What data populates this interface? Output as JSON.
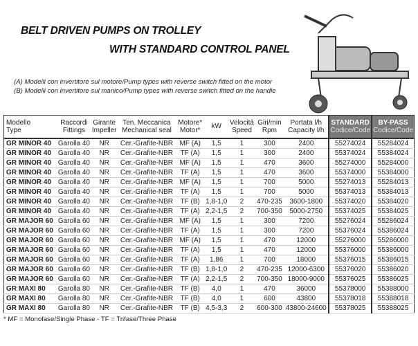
{
  "title_line1": "BELT DRIVEN PUMPS ON TROLLEY",
  "title_line2": "WITH STANDARD CONTROL PANEL",
  "notes": [
    "(A) Modelli con invertitore sul motore/Pump types with reverse switch fitted on the motor",
    "(B) Modelli con invertitore sul manico/Pump types with reverse switch fitted on the handle"
  ],
  "headers": [
    {
      "l1": "Modello",
      "l2": "Type"
    },
    {
      "l1": "Raccordi",
      "l2": "Fittings"
    },
    {
      "l1": "Girante",
      "l2": "Impeller"
    },
    {
      "l1": "Ten. Meccanica",
      "l2": "Mechanical seal"
    },
    {
      "l1": "Motore*",
      "l2": "Motor*"
    },
    {
      "l1": "kW",
      "l2": ""
    },
    {
      "l1": "Velocità",
      "l2": "Speed"
    },
    {
      "l1": "Giri/min",
      "l2": "Rpm"
    },
    {
      "l1": "Portata l/h",
      "l2": "Capacity l/h"
    },
    {
      "l1": "STANDARD",
      "l2": "Codice/Code"
    },
    {
      "l1": "BY-PASS",
      "l2": "Codice/Code"
    }
  ],
  "rows": [
    [
      "GR MINOR 40",
      "Garolla 40",
      "NR",
      "Cer.-Grafite-NBR",
      "MF (A)",
      "1,5",
      "1",
      "300",
      "2400",
      "55274024",
      "55284024"
    ],
    [
      "GR MINOR 40",
      "Garolla 40",
      "NR",
      "Cer.-Grafite-NBR",
      "TF (A)",
      "1,5",
      "1",
      "300",
      "2400",
      "55374024",
      "55384024"
    ],
    [
      "GR MINOR 40",
      "Garolla 40",
      "NR",
      "Cer.-Grafite-NBR",
      "MF (A)",
      "1,5",
      "1",
      "470",
      "3600",
      "55274000",
      "55284000"
    ],
    [
      "GR MINOR 40",
      "Garolla 40",
      "NR",
      "Cer.-Grafite-NBR",
      "TF (A)",
      "1,5",
      "1",
      "470",
      "3600",
      "55374000",
      "55384000"
    ],
    [
      "GR MINOR 40",
      "Garolla 40",
      "NR",
      "Cer.-Grafite-NBR",
      "MF (A)",
      "1,5",
      "1",
      "700",
      "5000",
      "55274013",
      "55284013"
    ],
    [
      "GR MINOR 40",
      "Garolla 40",
      "NR",
      "Cer.-Grafite-NBR",
      "TF (A)",
      "1,5",
      "1",
      "700",
      "5000",
      "55374013",
      "55384013"
    ],
    [
      "GR MINOR 40",
      "Garolla 40",
      "NR",
      "Cer.-Grafite-NBR",
      "TF (B)",
      "1,8-1,0",
      "2",
      "470-235",
      "3600-1800",
      "55374020",
      "55384020"
    ],
    [
      "GR MINOR 40",
      "Garolla 40",
      "NR",
      "Cer.-Grafite-NBR",
      "TF (A)",
      "2,2-1,5",
      "2",
      "700-350",
      "5000-2750",
      "55374025",
      "55384025"
    ],
    [
      "GR MAJOR 60",
      "Garolla 60",
      "NR",
      "Cer.-Grafite-NBR",
      "MF (A)",
      "1,5",
      "1",
      "300",
      "7200",
      "55276024",
      "55286024"
    ],
    [
      "GR MAJOR 60",
      "Garolla 60",
      "NR",
      "Cer.-Grafite-NBR",
      "TF (A)",
      "1,5",
      "1",
      "300",
      "7200",
      "55376024",
      "55386024"
    ],
    [
      "GR MAJOR 60",
      "Garolla 60",
      "NR",
      "Cer.-Grafite-NBR",
      "MF (A)",
      "1,5",
      "1",
      "470",
      "12000",
      "55276000",
      "55286000"
    ],
    [
      "GR MAJOR 60",
      "Garolla 60",
      "NR",
      "Cer.-Grafite-NBR",
      "TF (A)",
      "1,5",
      "1",
      "470",
      "12000",
      "55376000",
      "55386000"
    ],
    [
      "GR MAJOR 60",
      "Garolla 60",
      "NR",
      "Cer.-Grafite-NBR",
      "TF (A)",
      "1,86",
      "1",
      "700",
      "18000",
      "55376015",
      "55386015"
    ],
    [
      "GR MAJOR 60",
      "Garolla 60",
      "NR",
      "Cer.-Grafite-NBR",
      "TF (B)",
      "1,8-1,0",
      "2",
      "470-235",
      "12000-6300",
      "55376020",
      "55386020"
    ],
    [
      "GR MAJOR 60",
      "Garolla 60",
      "NR",
      "Cer.-Grafite-NBR",
      "TF (A)",
      "2,2-1,5",
      "2",
      "700-350",
      "18000-9000",
      "55376025",
      "55386025"
    ],
    [
      "GR MAXI 80",
      "Garolla 80",
      "NR",
      "Cer.-Grafite-NBR",
      "TF (B)",
      "4,0",
      "1",
      "470",
      "36000",
      "55378000",
      "55388000"
    ],
    [
      "GR MAXI 80",
      "Garolla 80",
      "NR",
      "Cer.-Grafite-NBR",
      "TF (B)",
      "4,0",
      "1",
      "600",
      "43800",
      "55378018",
      "55388018"
    ],
    [
      "GR MAXI 80",
      "Garolla 80",
      "NR",
      "Cer.-Grafite-NBR",
      "TF (B)",
      "4,5-3,3",
      "2",
      "600-300",
      "43800-24600",
      "55378025",
      "55388025"
    ]
  ],
  "footnote": "* MF = Monofase/Single Phase - TF = Trifase/Three Phase",
  "colors": {
    "code_header": "#7a7a7a"
  }
}
